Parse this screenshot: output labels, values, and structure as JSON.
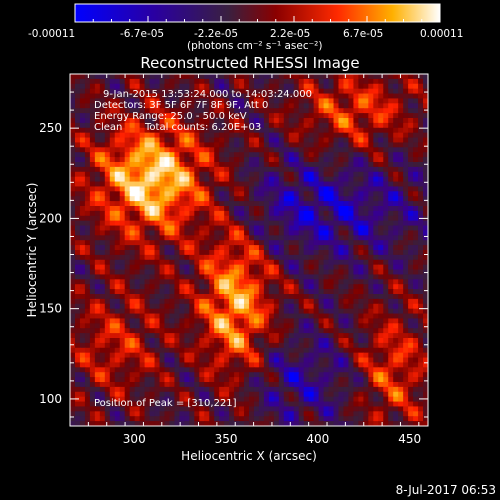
{
  "colorbar": {
    "tick_labels": [
      "-0.00011",
      "-6.7e-05",
      "-2.2e-05",
      "2.2e-05",
      "6.7e-05",
      "0.00011"
    ],
    "units_label": "(photons cm⁻² s⁻¹ asec⁻²)",
    "range": [
      -0.00011,
      0.00011
    ],
    "colors": [
      "#0000ff",
      "#3a0088",
      "#3a1e3c",
      "#7a0000",
      "#ff2000",
      "#ffa800",
      "#ffffff"
    ]
  },
  "chart_data": {
    "type": "heatmap",
    "title": "Reconstructed RHESSI Image",
    "xlabel": "Heliocentric X (arcsec)",
    "ylabel": "Heliocentric Y (arcsec)",
    "xlim": [
      265,
      460
    ],
    "ylim": [
      85,
      280
    ],
    "x_ticks": [
      300,
      350,
      400,
      450
    ],
    "y_ticks": [
      100,
      150,
      200,
      250
    ],
    "peak": [
      310,
      221
    ],
    "annotations": {
      "time_range": "9-Jan-2015 13:53:24.000 to 14:03:24.000",
      "detectors": "Detectors: 3F 5F 6F 7F 8F 9F, Att 0",
      "energy": "Energy Range: 25.0 - 50.0 keV",
      "method": "Clean",
      "counts": "Total counts: 6.20E+03",
      "peak_text": "Position of Peak = [310,221]"
    },
    "date_stamp": "8-Jul-2017 06:53"
  }
}
